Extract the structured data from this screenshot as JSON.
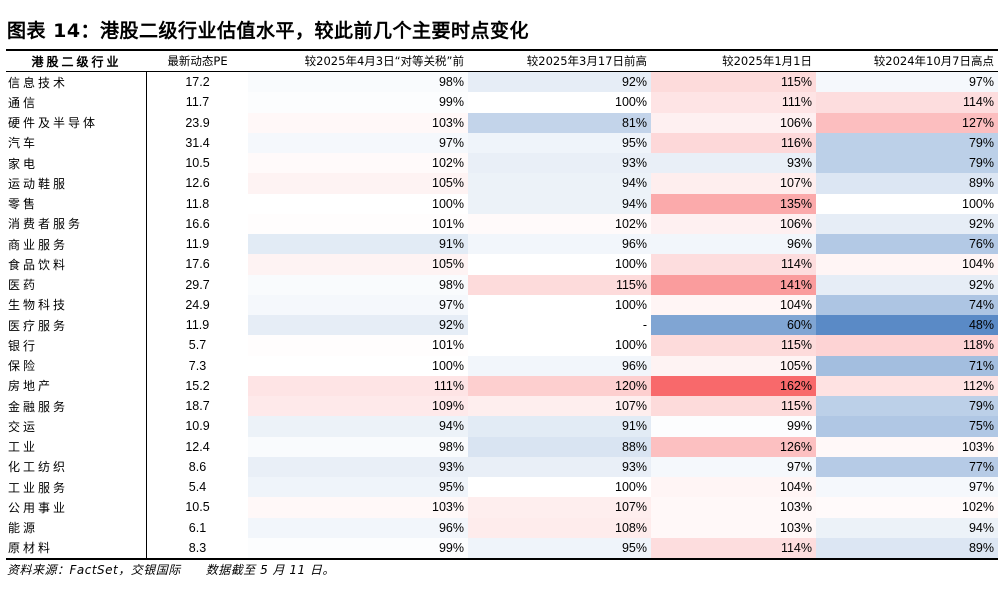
{
  "title": "图表 14：港股二级行业估值水平，较此前几个主要时点变化",
  "headers": {
    "industry": "港股二级行业",
    "pe": "最新动态PE",
    "col1": "较2025年4月3日“对等关税”前",
    "col2": "较2025年3月17日前高",
    "col3": "较2025年1月1日",
    "col4": "较2024年10月7日高点"
  },
  "colors": {
    "low": "#5A8AC6",
    "mid": "#FFFFFF",
    "high": "#F8696B"
  },
  "rows": [
    {
      "industry": "信息技术",
      "pe": "17.2",
      "c1": "98%",
      "c2": "92%",
      "c3": "115%",
      "c4": "97%"
    },
    {
      "industry": "通信",
      "pe": "11.7",
      "c1": "99%",
      "c2": "100%",
      "c3": "111%",
      "c4": "114%"
    },
    {
      "industry": "硬件及半导体",
      "pe": "23.9",
      "c1": "103%",
      "c2": "81%",
      "c3": "106%",
      "c4": "127%"
    },
    {
      "industry": "汽车",
      "pe": "31.4",
      "c1": "97%",
      "c2": "95%",
      "c3": "116%",
      "c4": "79%"
    },
    {
      "industry": "家电",
      "pe": "10.5",
      "c1": "102%",
      "c2": "93%",
      "c3": "93%",
      "c4": "79%"
    },
    {
      "industry": "运动鞋服",
      "pe": "12.6",
      "c1": "105%",
      "c2": "94%",
      "c3": "107%",
      "c4": "89%"
    },
    {
      "industry": "零售",
      "pe": "11.8",
      "c1": "100%",
      "c2": "94%",
      "c3": "135%",
      "c4": "100%"
    },
    {
      "industry": "消费者服务",
      "pe": "16.6",
      "c1": "101%",
      "c2": "102%",
      "c3": "106%",
      "c4": "92%"
    },
    {
      "industry": "商业服务",
      "pe": "11.9",
      "c1": "91%",
      "c2": "96%",
      "c3": "96%",
      "c4": "76%"
    },
    {
      "industry": "食品饮料",
      "pe": "17.6",
      "c1": "105%",
      "c2": "100%",
      "c3": "114%",
      "c4": "104%"
    },
    {
      "industry": "医药",
      "pe": "29.7",
      "c1": "98%",
      "c2": "115%",
      "c3": "141%",
      "c4": "92%"
    },
    {
      "industry": "生物科技",
      "pe": "24.9",
      "c1": "97%",
      "c2": "100%",
      "c3": "104%",
      "c4": "74%"
    },
    {
      "industry": "医疗服务",
      "pe": "11.9",
      "c1": "92%",
      "c2": "-",
      "c3": "60%",
      "c4": "48%"
    },
    {
      "industry": "银行",
      "pe": "5.7",
      "c1": "101%",
      "c2": "100%",
      "c3": "115%",
      "c4": "118%"
    },
    {
      "industry": "保险",
      "pe": "7.3",
      "c1": "100%",
      "c2": "96%",
      "c3": "105%",
      "c4": "71%"
    },
    {
      "industry": "房地产",
      "pe": "15.2",
      "c1": "111%",
      "c2": "120%",
      "c3": "162%",
      "c4": "112%"
    },
    {
      "industry": "金融服务",
      "pe": "18.7",
      "c1": "109%",
      "c2": "107%",
      "c3": "115%",
      "c4": "79%"
    },
    {
      "industry": "交运",
      "pe": "10.9",
      "c1": "94%",
      "c2": "91%",
      "c3": "99%",
      "c4": "75%"
    },
    {
      "industry": "工业",
      "pe": "12.4",
      "c1": "98%",
      "c2": "88%",
      "c3": "126%",
      "c4": "103%"
    },
    {
      "industry": "化工纺织",
      "pe": "8.6",
      "c1": "93%",
      "c2": "93%",
      "c3": "97%",
      "c4": "77%"
    },
    {
      "industry": "工业服务",
      "pe": "5.4",
      "c1": "95%",
      "c2": "100%",
      "c3": "104%",
      "c4": "97%"
    },
    {
      "industry": "公用事业",
      "pe": "10.5",
      "c1": "103%",
      "c2": "107%",
      "c3": "103%",
      "c4": "102%"
    },
    {
      "industry": "能源",
      "pe": "6.1",
      "c1": "96%",
      "c2": "108%",
      "c3": "103%",
      "c4": "94%"
    },
    {
      "industry": "原材料",
      "pe": "8.3",
      "c1": "99%",
      "c2": "95%",
      "c3": "114%",
      "c4": "89%"
    }
  ],
  "footer": "资料来源：FactSet，交银国际　　数据截至 5 月 11 日。"
}
